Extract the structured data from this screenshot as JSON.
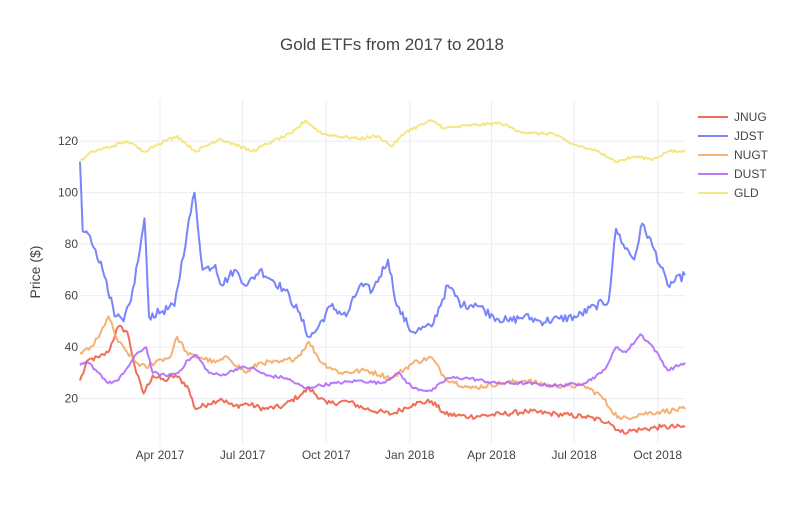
{
  "chart_data": {
    "type": "line",
    "title": "Gold ETFs from 2017 to 2018",
    "xlabel": "",
    "ylabel": "Price ($)",
    "xlim": [
      "2017-01-03",
      "2018-10-31"
    ],
    "ylim": [
      2,
      136
    ],
    "yticks": [
      20,
      40,
      60,
      80,
      100,
      120
    ],
    "xticks": [
      {
        "date": "2017-04-01",
        "label": "Apr 2017"
      },
      {
        "date": "2017-07-01",
        "label": "Jul 2017"
      },
      {
        "date": "2017-10-01",
        "label": "Oct 2017"
      },
      {
        "date": "2018-01-01",
        "label": "Jan 2018"
      },
      {
        "date": "2018-04-01",
        "label": "Apr 2018"
      },
      {
        "date": "2018-07-01",
        "label": "Jul 2018"
      },
      {
        "date": "2018-10-01",
        "label": "Oct 2018"
      }
    ],
    "grid": true,
    "legend_position": "top-right",
    "series": [
      {
        "name": "JNUG",
        "color": "#ef553b",
        "points": [
          [
            "2017-01-03",
            27
          ],
          [
            "2017-01-12",
            35
          ],
          [
            "2017-01-24",
            36
          ],
          [
            "2017-02-03",
            38
          ],
          [
            "2017-02-14",
            48
          ],
          [
            "2017-02-24",
            46
          ],
          [
            "2017-03-06",
            30
          ],
          [
            "2017-03-14",
            22
          ],
          [
            "2017-03-24",
            29
          ],
          [
            "2017-04-06",
            27
          ],
          [
            "2017-04-18",
            29
          ],
          [
            "2017-05-01",
            25
          ],
          [
            "2017-05-10",
            16
          ],
          [
            "2017-05-24",
            18
          ],
          [
            "2017-06-07",
            20
          ],
          [
            "2017-06-21",
            17
          ],
          [
            "2017-07-06",
            18
          ],
          [
            "2017-07-25",
            16
          ],
          [
            "2017-08-14",
            17
          ],
          [
            "2017-09-05",
            22
          ],
          [
            "2017-09-12",
            24
          ],
          [
            "2017-10-02",
            18
          ],
          [
            "2017-10-24",
            19
          ],
          [
            "2017-11-14",
            16
          ],
          [
            "2017-12-12",
            14
          ],
          [
            "2018-01-05",
            18
          ],
          [
            "2018-01-25",
            19
          ],
          [
            "2018-02-09",
            14
          ],
          [
            "2018-03-08",
            13
          ],
          [
            "2018-04-12",
            14
          ],
          [
            "2018-05-10",
            15
          ],
          [
            "2018-06-12",
            14
          ],
          [
            "2018-07-12",
            13
          ],
          [
            "2018-08-08",
            11
          ],
          [
            "2018-08-21",
            7
          ],
          [
            "2018-09-12",
            8
          ],
          [
            "2018-10-05",
            9
          ],
          [
            "2018-10-31",
            9
          ]
        ]
      },
      {
        "name": "JDST",
        "color": "#636efa",
        "points": [
          [
            "2017-01-03",
            112
          ],
          [
            "2017-01-06",
            85
          ],
          [
            "2017-01-12",
            84
          ],
          [
            "2017-01-20",
            78
          ],
          [
            "2017-02-01",
            66
          ],
          [
            "2017-02-10",
            52
          ],
          [
            "2017-02-20",
            50
          ],
          [
            "2017-02-28",
            58
          ],
          [
            "2017-03-10",
            78
          ],
          [
            "2017-03-15",
            90
          ],
          [
            "2017-03-20",
            52
          ],
          [
            "2017-04-04",
            54
          ],
          [
            "2017-04-17",
            56
          ],
          [
            "2017-05-01",
            85
          ],
          [
            "2017-05-09",
            100
          ],
          [
            "2017-05-18",
            70
          ],
          [
            "2017-06-01",
            72
          ],
          [
            "2017-06-08",
            64
          ],
          [
            "2017-06-22",
            70
          ],
          [
            "2017-07-06",
            64
          ],
          [
            "2017-07-20",
            70
          ],
          [
            "2017-08-03",
            66
          ],
          [
            "2017-08-17",
            62
          ],
          [
            "2017-08-31",
            54
          ],
          [
            "2017-09-12",
            44
          ],
          [
            "2017-09-19",
            46
          ],
          [
            "2017-10-06",
            56
          ],
          [
            "2017-10-23",
            52
          ],
          [
            "2017-11-07",
            64
          ],
          [
            "2017-11-21",
            62
          ],
          [
            "2017-12-08",
            74
          ],
          [
            "2017-12-18",
            56
          ],
          [
            "2018-01-03",
            46
          ],
          [
            "2018-01-25",
            48
          ],
          [
            "2018-02-12",
            64
          ],
          [
            "2018-02-28",
            56
          ],
          [
            "2018-03-14",
            57
          ],
          [
            "2018-04-03",
            52
          ],
          [
            "2018-04-20",
            50
          ],
          [
            "2018-05-07",
            52
          ],
          [
            "2018-05-25",
            50
          ],
          [
            "2018-06-15",
            51
          ],
          [
            "2018-07-05",
            52
          ],
          [
            "2018-07-24",
            56
          ],
          [
            "2018-08-08",
            58
          ],
          [
            "2018-08-16",
            86
          ],
          [
            "2018-08-24",
            80
          ],
          [
            "2018-09-05",
            74
          ],
          [
            "2018-09-14",
            88
          ],
          [
            "2018-09-27",
            78
          ],
          [
            "2018-10-12",
            64
          ],
          [
            "2018-10-31",
            68
          ]
        ]
      },
      {
        "name": "NUGT",
        "color": "#f5a55c",
        "points": [
          [
            "2017-01-03",
            38
          ],
          [
            "2017-01-13",
            39
          ],
          [
            "2017-01-24",
            44
          ],
          [
            "2017-02-03",
            52
          ],
          [
            "2017-02-14",
            42
          ],
          [
            "2017-02-24",
            38
          ],
          [
            "2017-03-06",
            34
          ],
          [
            "2017-03-17",
            32
          ],
          [
            "2017-03-30",
            35
          ],
          [
            "2017-04-12",
            36
          ],
          [
            "2017-04-20",
            44
          ],
          [
            "2017-05-02",
            37
          ],
          [
            "2017-05-16",
            36
          ],
          [
            "2017-06-01",
            34
          ],
          [
            "2017-06-15",
            36
          ],
          [
            "2017-07-05",
            30
          ],
          [
            "2017-07-20",
            34
          ],
          [
            "2017-08-10",
            34
          ],
          [
            "2017-08-30",
            36
          ],
          [
            "2017-09-12",
            42
          ],
          [
            "2017-09-26",
            34
          ],
          [
            "2017-10-17",
            30
          ],
          [
            "2017-11-14",
            31
          ],
          [
            "2017-12-12",
            28
          ],
          [
            "2018-01-05",
            34
          ],
          [
            "2018-01-25",
            36
          ],
          [
            "2018-02-09",
            28
          ],
          [
            "2018-03-09",
            24
          ],
          [
            "2018-04-11",
            26
          ],
          [
            "2018-05-08",
            27
          ],
          [
            "2018-06-06",
            25
          ],
          [
            "2018-07-12",
            25
          ],
          [
            "2018-07-31",
            21
          ],
          [
            "2018-08-10",
            16
          ],
          [
            "2018-08-21",
            12
          ],
          [
            "2018-09-12",
            14
          ],
          [
            "2018-10-05",
            15
          ],
          [
            "2018-10-31",
            16
          ]
        ]
      },
      {
        "name": "DUST",
        "color": "#ab63fa",
        "points": [
          [
            "2017-01-03",
            33
          ],
          [
            "2017-01-12",
            34
          ],
          [
            "2017-01-24",
            30
          ],
          [
            "2017-02-03",
            26
          ],
          [
            "2017-02-14",
            27
          ],
          [
            "2017-02-24",
            32
          ],
          [
            "2017-03-08",
            38
          ],
          [
            "2017-03-17",
            40
          ],
          [
            "2017-03-24",
            30
          ],
          [
            "2017-04-07",
            29
          ],
          [
            "2017-04-21",
            30
          ],
          [
            "2017-05-02",
            35
          ],
          [
            "2017-05-11",
            37
          ],
          [
            "2017-05-25",
            30
          ],
          [
            "2017-06-08",
            29
          ],
          [
            "2017-06-27",
            32
          ],
          [
            "2017-07-11",
            32
          ],
          [
            "2017-07-27",
            29
          ],
          [
            "2017-08-18",
            28
          ],
          [
            "2017-09-08",
            24
          ],
          [
            "2017-09-21",
            25
          ],
          [
            "2017-10-12",
            26
          ],
          [
            "2017-11-07",
            27
          ],
          [
            "2017-12-01",
            26
          ],
          [
            "2017-12-19",
            30
          ],
          [
            "2018-01-05",
            24
          ],
          [
            "2018-01-25",
            23
          ],
          [
            "2018-02-12",
            28
          ],
          [
            "2018-03-06",
            28
          ],
          [
            "2018-04-06",
            26
          ],
          [
            "2018-05-08",
            26
          ],
          [
            "2018-06-12",
            25
          ],
          [
            "2018-07-12",
            26
          ],
          [
            "2018-07-31",
            30
          ],
          [
            "2018-08-08",
            34
          ],
          [
            "2018-08-16",
            40
          ],
          [
            "2018-08-27",
            38
          ],
          [
            "2018-09-12",
            45
          ],
          [
            "2018-09-26",
            40
          ],
          [
            "2018-10-12",
            31
          ],
          [
            "2018-10-31",
            34
          ]
        ]
      },
      {
        "name": "GLD",
        "color": "#f2e26d",
        "points": [
          [
            "2017-01-03",
            112
          ],
          [
            "2017-01-17",
            116
          ],
          [
            "2017-02-07",
            118
          ],
          [
            "2017-02-24",
            120
          ],
          [
            "2017-03-14",
            116
          ],
          [
            "2017-03-30",
            119
          ],
          [
            "2017-04-20",
            122
          ],
          [
            "2017-05-10",
            116
          ],
          [
            "2017-06-06",
            121
          ],
          [
            "2017-06-28",
            118
          ],
          [
            "2017-07-11",
            116
          ],
          [
            "2017-08-03",
            120
          ],
          [
            "2017-08-24",
            123
          ],
          [
            "2017-09-08",
            128
          ],
          [
            "2017-09-26",
            123
          ],
          [
            "2017-10-12",
            122
          ],
          [
            "2017-11-06",
            121
          ],
          [
            "2017-11-27",
            122
          ],
          [
            "2017-12-12",
            118
          ],
          [
            "2017-12-29",
            124
          ],
          [
            "2018-01-25",
            128
          ],
          [
            "2018-02-09",
            125
          ],
          [
            "2018-03-05",
            126
          ],
          [
            "2018-04-11",
            127
          ],
          [
            "2018-05-01",
            124
          ],
          [
            "2018-05-15",
            123
          ],
          [
            "2018-06-07",
            123
          ],
          [
            "2018-06-28",
            119
          ],
          [
            "2018-07-17",
            117
          ],
          [
            "2018-08-03",
            115
          ],
          [
            "2018-08-16",
            112
          ],
          [
            "2018-09-06",
            114
          ],
          [
            "2018-09-26",
            113
          ],
          [
            "2018-10-12",
            116
          ],
          [
            "2018-10-31",
            116
          ]
        ]
      }
    ]
  }
}
